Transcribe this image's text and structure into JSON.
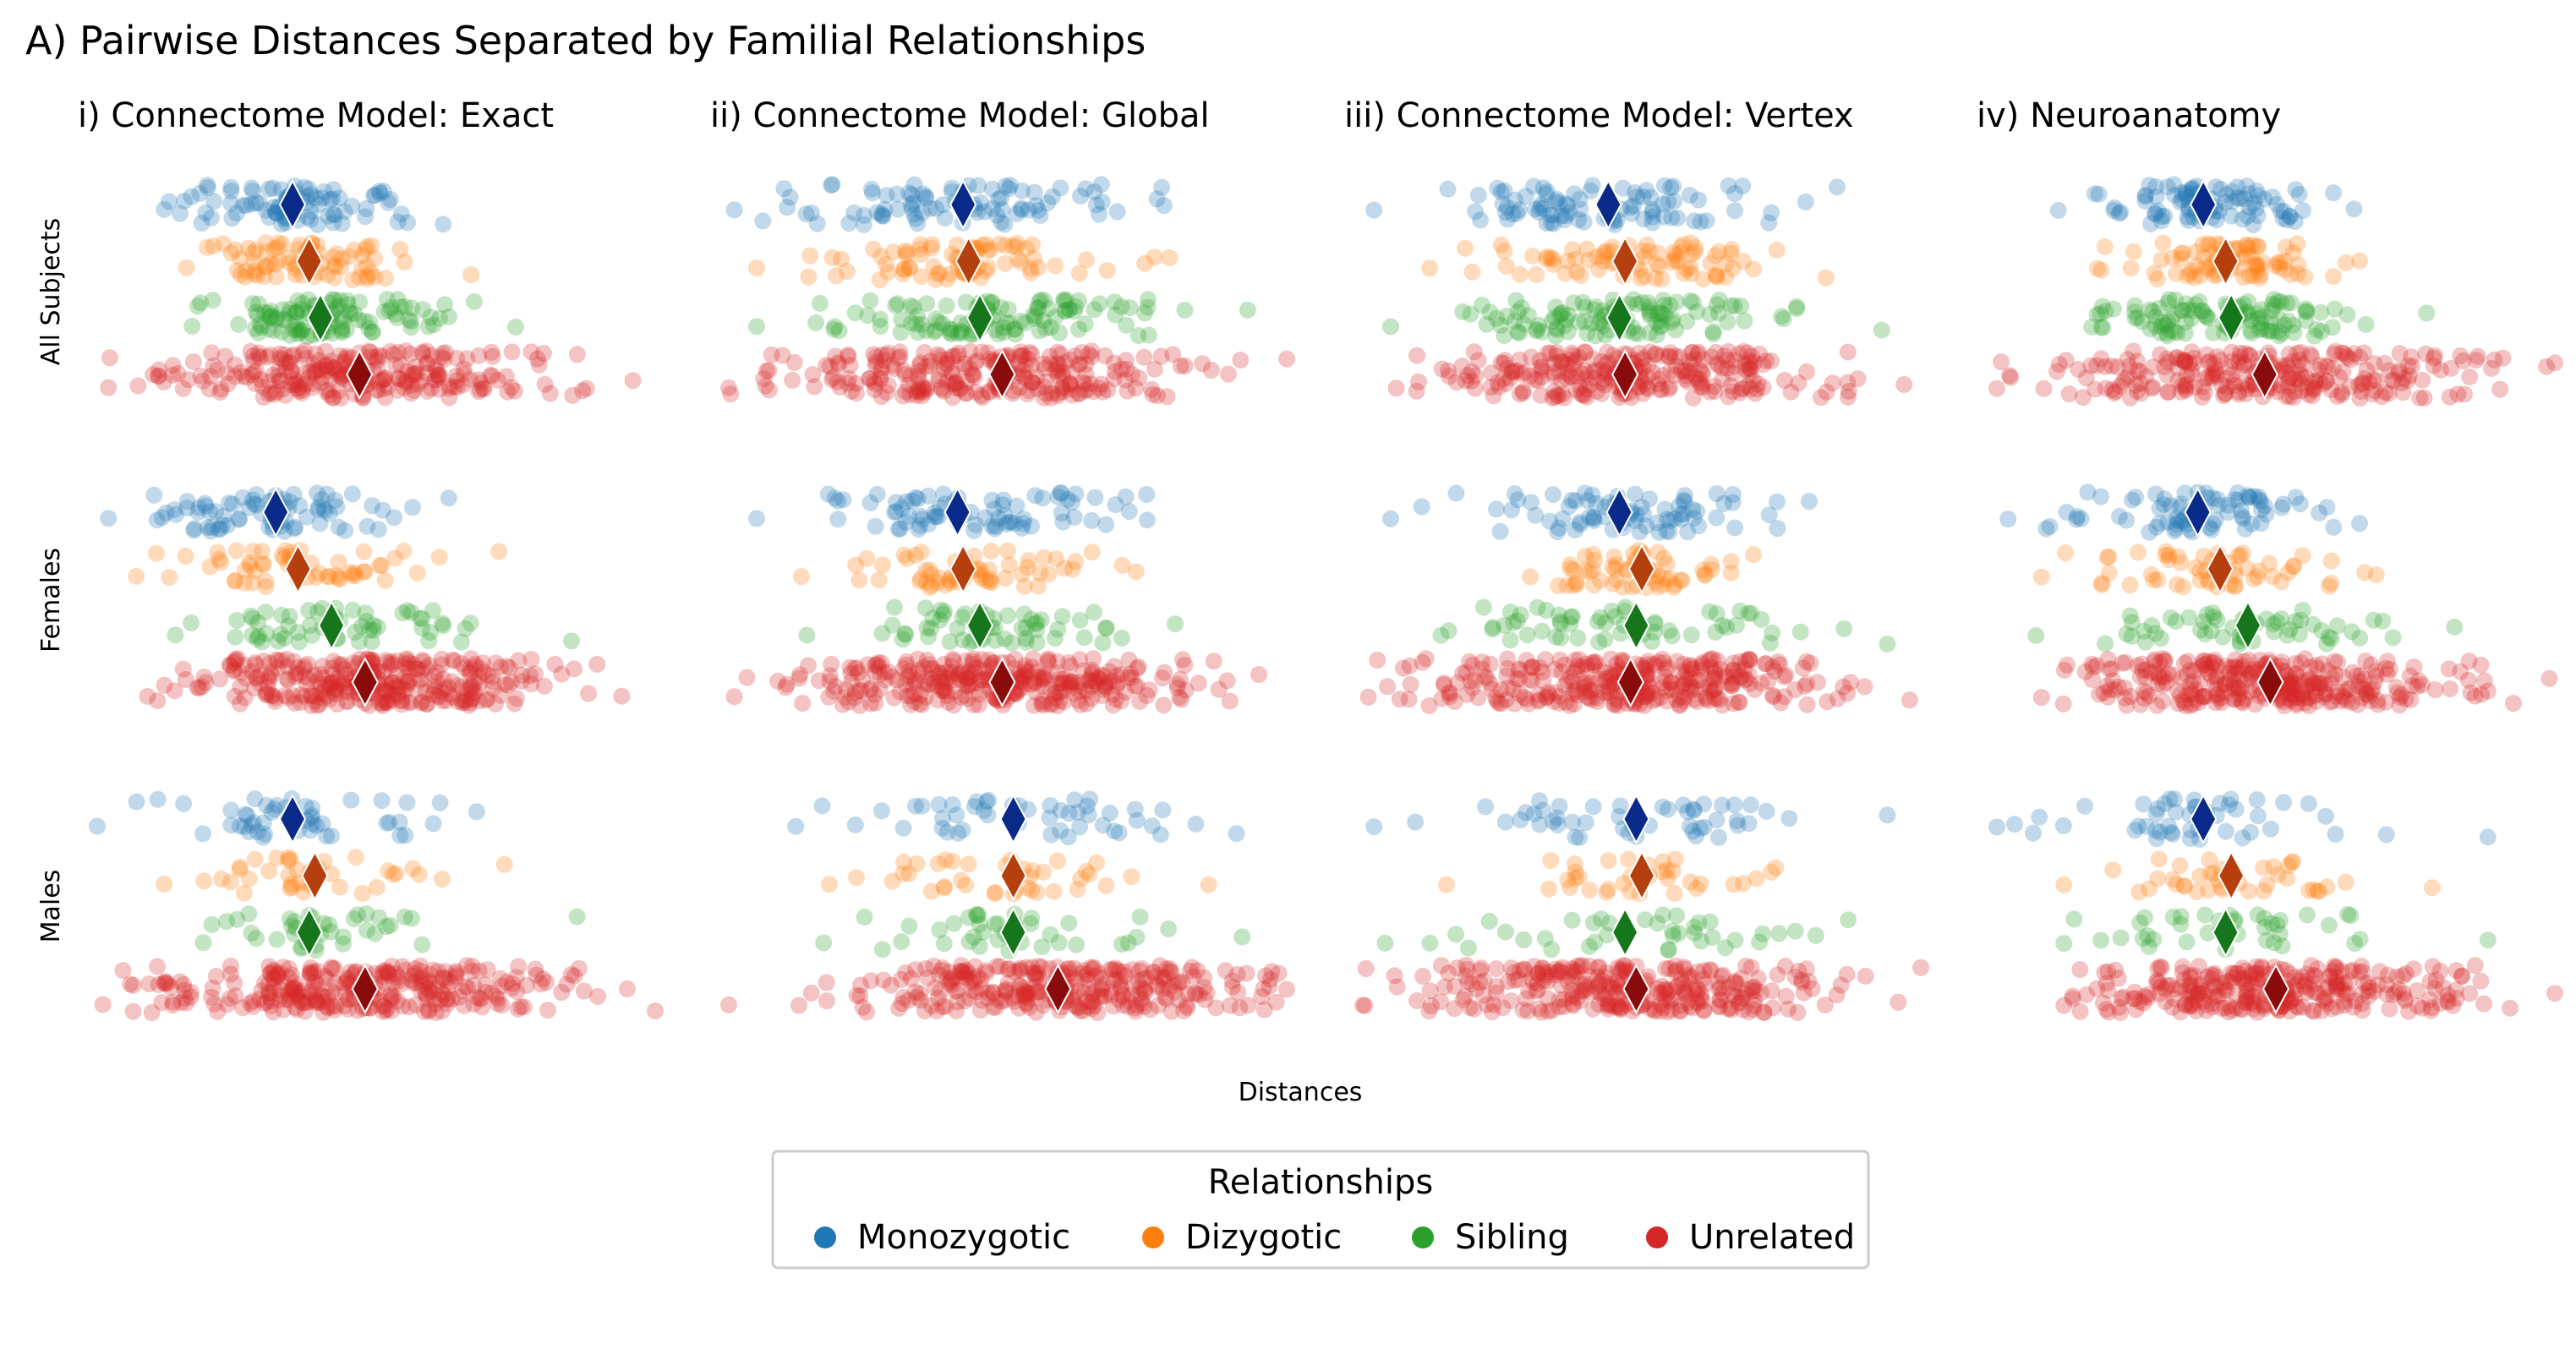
{
  "figure_title": "A) Pairwise Distances Separated by Familial Relationships",
  "xlabel": "Distances",
  "legend": {
    "title": "Relationships",
    "placement": "bottom-center",
    "entries": [
      {
        "label": "Monozygotic",
        "color": "#1f77b4"
      },
      {
        "label": "Dizygotic",
        "color": "#ff7f0e"
      },
      {
        "label": "Sibling",
        "color": "#2ca02c"
      },
      {
        "label": "Unrelated",
        "color": "#d62728"
      }
    ]
  },
  "chart_data": {
    "type": "scatter",
    "subtype": "strip-plot with mean markers",
    "columns": [
      "i) Connectome Model: Exact",
      "ii) Connectome Model: Global",
      "iii) Connectome Model: Vertex",
      "iv) Neuroanatomy"
    ],
    "rows": [
      "All Subjects",
      "Females",
      "Males"
    ],
    "categories": [
      "Monozygotic",
      "Dizygotic",
      "Sibling",
      "Unrelated"
    ],
    "axis_ticks_shown": false,
    "grid": false,
    "mean_marker_colors": [
      "#0a2a8a",
      "#b5400e",
      "#16761b",
      "#8a0b0b"
    ],
    "panels": [
      {
        "col": 0,
        "row": 0,
        "means": [
          0.35,
          0.38,
          0.4,
          0.47
        ],
        "ranges": [
          [
            0.12,
            0.62
          ],
          [
            0.16,
            0.67
          ],
          [
            0.17,
            0.75
          ],
          [
            0.02,
            0.96
          ]
        ],
        "counts": [
          90,
          80,
          110,
          260
        ]
      },
      {
        "col": 1,
        "row": 0,
        "means": [
          0.42,
          0.43,
          0.45,
          0.49
        ],
        "ranges": [
          [
            0.01,
            0.78
          ],
          [
            0.05,
            0.79
          ],
          [
            0.05,
            0.93
          ],
          [
            0.0,
            1.0
          ]
        ],
        "counts": [
          90,
          80,
          110,
          260
        ]
      },
      {
        "col": 2,
        "row": 0,
        "means": [
          0.44,
          0.47,
          0.46,
          0.47
        ],
        "ranges": [
          [
            0.02,
            0.85
          ],
          [
            0.12,
            0.83
          ],
          [
            0.05,
            0.93
          ],
          [
            0.06,
            0.97
          ]
        ],
        "counts": [
          90,
          80,
          110,
          260
        ]
      },
      {
        "col": 3,
        "row": 0,
        "means": [
          0.37,
          0.41,
          0.42,
          0.48
        ],
        "ranges": [
          [
            0.11,
            0.64
          ],
          [
            0.18,
            0.65
          ],
          [
            0.17,
            0.77
          ],
          [
            0.0,
            1.0
          ]
        ],
        "counts": [
          90,
          80,
          110,
          260
        ]
      },
      {
        "col": 0,
        "row": 1,
        "means": [
          0.32,
          0.36,
          0.42,
          0.48
        ],
        "ranges": [
          [
            0.02,
            0.63
          ],
          [
            0.07,
            0.72
          ],
          [
            0.14,
            0.85
          ],
          [
            0.09,
            0.94
          ]
        ],
        "counts": [
          80,
          60,
          60,
          320
        ]
      },
      {
        "col": 1,
        "row": 1,
        "means": [
          0.41,
          0.42,
          0.45,
          0.49
        ],
        "ranges": [
          [
            0.05,
            0.75
          ],
          [
            0.13,
            0.73
          ],
          [
            0.14,
            0.8
          ],
          [
            0.01,
            0.95
          ]
        ],
        "counts": [
          80,
          60,
          60,
          320
        ]
      },
      {
        "col": 2,
        "row": 1,
        "means": [
          0.46,
          0.5,
          0.49,
          0.48
        ],
        "ranges": [
          [
            0.05,
            0.8
          ],
          [
            0.3,
            0.7
          ],
          [
            0.14,
            0.94
          ],
          [
            0.01,
            0.98
          ]
        ],
        "counts": [
          80,
          60,
          60,
          320
        ]
      },
      {
        "col": 3,
        "row": 1,
        "means": [
          0.36,
          0.4,
          0.45,
          0.49
        ],
        "ranges": [
          [
            0.02,
            0.65
          ],
          [
            0.08,
            0.68
          ],
          [
            0.07,
            0.82
          ],
          [
            0.08,
            0.99
          ]
        ],
        "counts": [
          80,
          60,
          60,
          320
        ]
      },
      {
        "col": 0,
        "row": 2,
        "means": [
          0.35,
          0.39,
          0.38,
          0.48
        ],
        "ranges": [
          [
            0.0,
            0.68
          ],
          [
            0.12,
            0.73
          ],
          [
            0.19,
            0.86
          ],
          [
            0.01,
            1.0
          ]
        ],
        "counts": [
          50,
          40,
          40,
          300
        ]
      },
      {
        "col": 1,
        "row": 2,
        "means": [
          0.51,
          0.51,
          0.51,
          0.59
        ],
        "ranges": [
          [
            0.12,
            0.91
          ],
          [
            0.18,
            0.86
          ],
          [
            0.17,
            0.92
          ],
          [
            0.0,
            1.0
          ]
        ],
        "counts": [
          50,
          40,
          40,
          300
        ]
      },
      {
        "col": 2,
        "row": 2,
        "means": [
          0.49,
          0.5,
          0.47,
          0.49
        ],
        "ranges": [
          [
            0.02,
            0.94
          ],
          [
            0.15,
            0.74
          ],
          [
            0.04,
            0.87
          ],
          [
            0.0,
            1.0
          ]
        ],
        "counts": [
          50,
          40,
          40,
          300
        ]
      },
      {
        "col": 3,
        "row": 2,
        "means": [
          0.37,
          0.42,
          0.41,
          0.5
        ],
        "ranges": [
          [
            0.0,
            0.88
          ],
          [
            0.12,
            0.78
          ],
          [
            0.12,
            0.88
          ],
          [
            0.12,
            1.0
          ]
        ],
        "counts": [
          50,
          40,
          40,
          300
        ]
      }
    ]
  }
}
